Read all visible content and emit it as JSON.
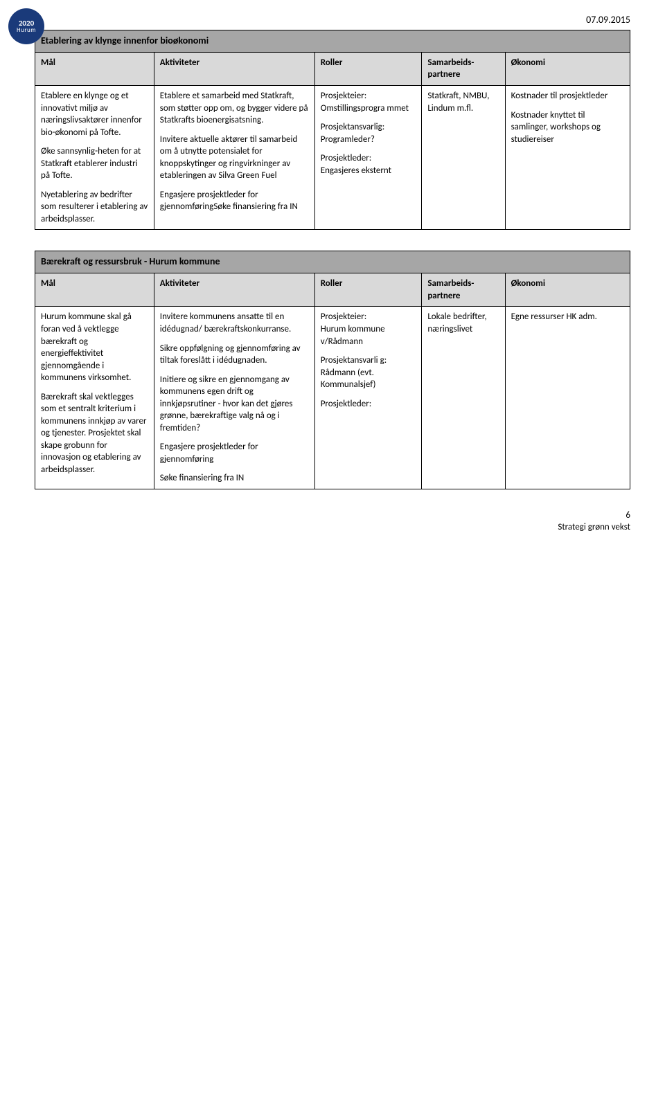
{
  "logo": {
    "year": "2020",
    "name": "Hurum"
  },
  "date": "07.09.2015",
  "table1": {
    "title": "Etablering av klynge innenfor bioøkonomi",
    "headers": [
      "Mål",
      "Aktiviteter",
      "Roller",
      "Samarbeids-partnere",
      "Økonomi"
    ],
    "row": {
      "mal_p1": "Etablere en klynge og et innovativt miljø av næringslivsaktører innenfor bio-økonomi på Tofte.",
      "mal_p2": "Øke sannsynlig-heten for at Statkraft etablerer industri på Tofte.",
      "mal_p3": "Nyetablering av bedrifter som resulterer i etablering av arbeidsplasser.",
      "akt_p1": "Etablere et samarbeid med Statkraft, som støtter opp om, og bygger videre på Statkrafts bioenergisatsning.",
      "akt_p2": "Invitere aktuelle aktører til samarbeid om å utnytte potensialet for knoppskytinger og ringvirkninger av etableringen av Silva Green Fuel",
      "akt_p3": "Engasjere prosjektleder for gjennomføringSøke finansiering fra IN",
      "rol_p1a": "Prosjekteier:",
      "rol_p1b": "Omstillingsprogra mmet",
      "rol_p2a": "Prosjektansvarlig:",
      "rol_p2b": "Programleder?",
      "rol_p3a": "Prosjektleder:",
      "rol_p3b": "Engasjeres eksternt",
      "sam": "Statkraft, NMBU, Lindum m.fl.",
      "oko_p1": "Kostnader til prosjektleder",
      "oko_p2": "Kostnader knyttet til samlinger, workshops og studiereiser"
    }
  },
  "table2": {
    "title": "Bærekraft og ressursbruk - Hurum kommune",
    "headers": [
      "Mål",
      "Aktiviteter",
      "Roller",
      "Samarbeids-partnere",
      "Økonomi"
    ],
    "row": {
      "mal_p1": "Hurum kommune skal gå foran ved å vektlegge bærekraft og energieffektivitet gjennomgående i kommunens virksomhet.",
      "mal_p2": "Bærekraft skal vektlegges som et sentralt kriterium i kommunens innkjøp av varer og tjenester. Prosjektet skal skape grobunn for innovasjon og etablering av arbeidsplasser.",
      "akt_p1": "Invitere kommunens ansatte til en idédugnad/ bærekraftskonkurranse.",
      "akt_p2": "Sikre oppfølgning og gjennomføring av tiltak foreslått i idédugnaden.",
      "akt_p3": "Initiere og sikre en gjennomgang av kommunens egen drift og innkjøpsrutiner - hvor kan det gjøres grønne, bærekraftige valg nå og i fremtiden?",
      "akt_p4": "Engasjere prosjektleder for gjennomføring",
      "akt_p5": "Søke finansiering fra IN",
      "rol_p1a": "Prosjekteier:",
      "rol_p1b": "Hurum kommune v/Rådmann",
      "rol_p2a": "Prosjektansvarli g: Rådmann (evt. Kommunalsjef)",
      "rol_p3a": "Prosjektleder:",
      "sam": "Lokale bedrifter, næringslivet",
      "oko": "Egne ressurser HK adm."
    }
  },
  "footer": {
    "pagenum": "6",
    "strategy": "Strategi grønn vekst"
  }
}
